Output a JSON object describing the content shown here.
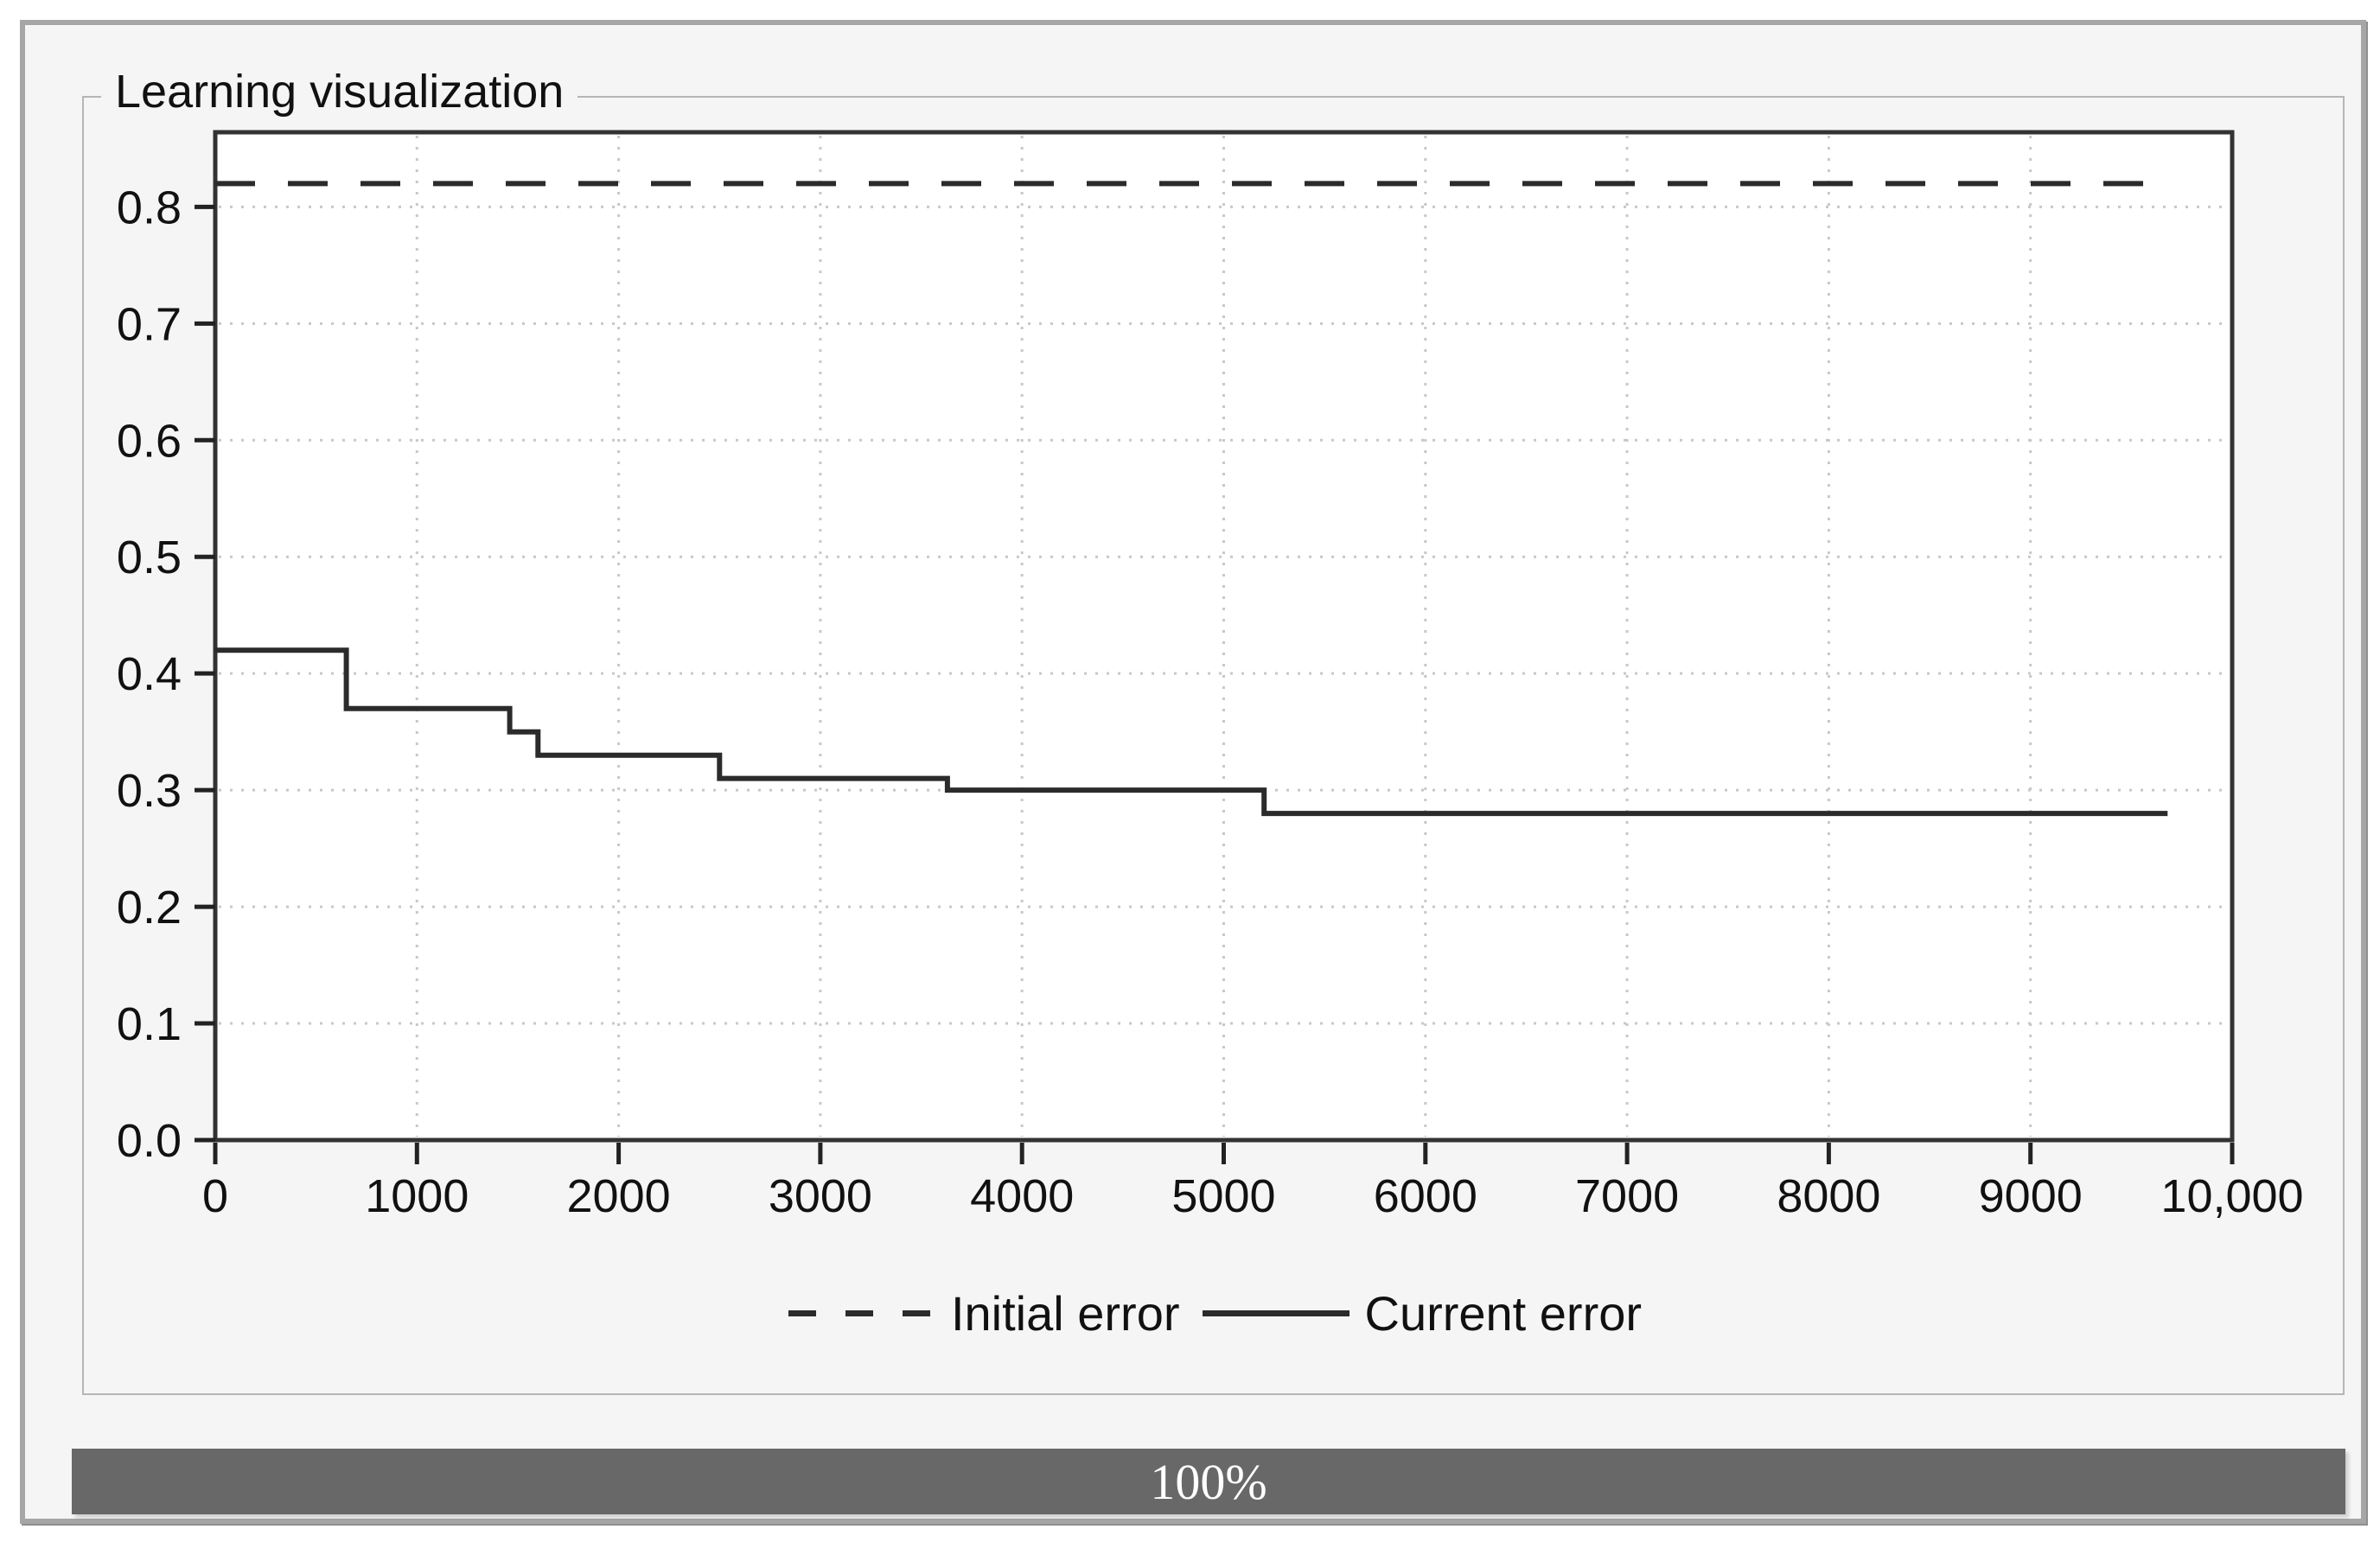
{
  "group_box": {
    "title": "Learning visualization"
  },
  "colors": {
    "window_background": "#f5f5f5",
    "window_border": "#a6a6a6",
    "groupbox_border": "#b6b6b6",
    "plot_background": "#ffffff",
    "plot_frame": "#333333",
    "gridline": "#c8c8c8",
    "line": "#2b2b2b",
    "tick": "#222222",
    "label": "#111111",
    "progress_fill": "#686868",
    "progress_text": "#ffffff"
  },
  "chart_data": {
    "type": "line",
    "title": "Learning visualization",
    "xlabel": "",
    "ylabel": "",
    "xlim": [
      0,
      10000
    ],
    "ylim": [
      0,
      0.864
    ],
    "grid": "dotted",
    "x_ticks": [
      0,
      1000,
      2000,
      3000,
      4000,
      5000,
      6000,
      7000,
      8000,
      9000,
      10000
    ],
    "x_tick_labels": [
      "0",
      "1000",
      "2000",
      "3000",
      "4000",
      "5000",
      "6000",
      "7000",
      "8000",
      "9000",
      "10,000"
    ],
    "y_ticks": [
      0.0,
      0.1,
      0.2,
      0.3,
      0.4,
      0.5,
      0.6,
      0.7,
      0.8
    ],
    "y_tick_labels": [
      "0.0",
      "0.1",
      "0.2",
      "0.3",
      "0.4",
      "0.5",
      "0.6",
      "0.7",
      "0.8"
    ],
    "series": [
      {
        "name": "Initial error",
        "style": "dashed",
        "points": [
          [
            0,
            0.82
          ],
          [
            9600,
            0.82
          ]
        ]
      },
      {
        "name": "Current error",
        "style": "solid",
        "points": [
          [
            0,
            0.42
          ],
          [
            650,
            0.42
          ],
          [
            650,
            0.37
          ],
          [
            1460,
            0.37
          ],
          [
            1460,
            0.35
          ],
          [
            1600,
            0.35
          ],
          [
            1600,
            0.33
          ],
          [
            2500,
            0.33
          ],
          [
            2500,
            0.31
          ],
          [
            3630,
            0.31
          ],
          [
            3630,
            0.3
          ],
          [
            5200,
            0.3
          ],
          [
            5200,
            0.28
          ],
          [
            9680,
            0.28
          ]
        ]
      }
    ],
    "legend": [
      {
        "label": "Initial error",
        "style": "dashed"
      },
      {
        "label": "Current error",
        "style": "solid"
      }
    ],
    "legend_position": "bottom-center"
  },
  "progress_bar": {
    "value": "100%",
    "percent": 100
  }
}
